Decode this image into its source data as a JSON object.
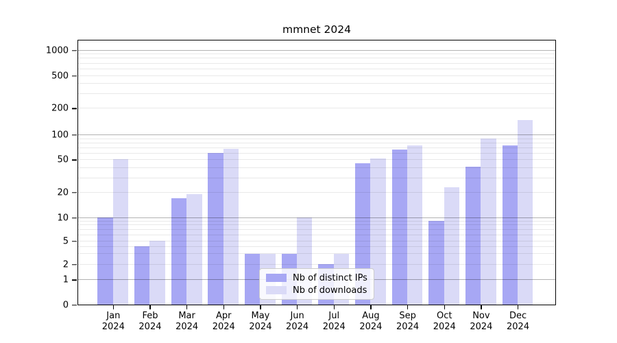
{
  "title": "mmnet 2024",
  "chart_data": {
    "type": "bar",
    "title": "mmnet 2024",
    "categories": [
      "Jan",
      "Feb",
      "Mar",
      "Apr",
      "May",
      "Jun",
      "Jul",
      "Aug",
      "Sep",
      "Oct",
      "Nov",
      "Dec"
    ],
    "year_label": "2024",
    "series": [
      {
        "name": "Nb of distinct IPs",
        "color": "#a7a7f4",
        "values": [
          10,
          4,
          17,
          60,
          3,
          3,
          2,
          45,
          66,
          9,
          41,
          75
        ]
      },
      {
        "name": "Nb of downloads",
        "color": "#dadaf7",
        "values": [
          51,
          5,
          19,
          67,
          3,
          10,
          3,
          52,
          75,
          23,
          90,
          148
        ]
      }
    ],
    "y_ticks": [
      0,
      1,
      2,
      5,
      10,
      20,
      50,
      100,
      200,
      500,
      1000
    ],
    "y_scale": "symlog",
    "ylim": [
      0,
      1400
    ],
    "grid": true,
    "grid_major_color": "#b3b3b3",
    "grid_minor_color": "#e9e9e9",
    "legend_position": "lower center",
    "legend_labels": [
      "Nb of distinct IPs",
      "Nb of downloads"
    ]
  }
}
